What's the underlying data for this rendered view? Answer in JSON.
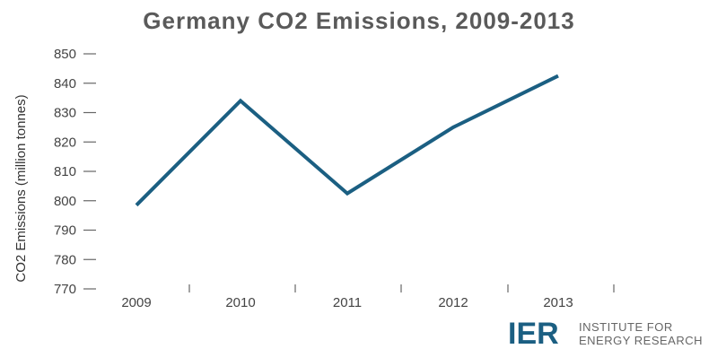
{
  "chart_data": {
    "type": "line",
    "title": "Germany CO2 Emissions, 2009-2013",
    "xlabel": "",
    "ylabel": "CO2 Emissions (million tonnes)",
    "categories": [
      "2009",
      "2010",
      "2011",
      "2012",
      "2013"
    ],
    "series": [
      {
        "values": [
          798.5,
          834,
          802.5,
          825,
          842.5
        ]
      }
    ],
    "ylim": [
      770,
      850
    ],
    "yticks": [
      770,
      780,
      790,
      800,
      810,
      820,
      830,
      840,
      850
    ],
    "grid": false,
    "line_color": "#1b5f82"
  },
  "logo": {
    "mark": "IER",
    "line1": "INSTITUTE FOR",
    "line2": "ENERGY RESEARCH"
  }
}
